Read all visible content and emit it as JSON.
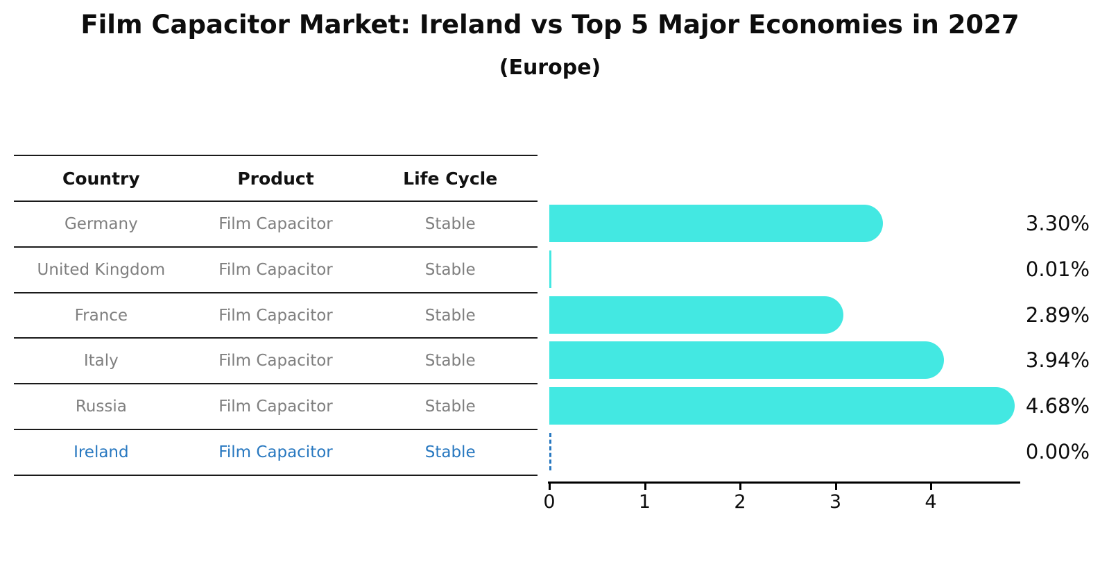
{
  "title": "Film Capacitor Market: Ireland vs Top 5 Major Economies in 2027",
  "subtitle": "(Europe)",
  "table": {
    "columns": [
      "Country",
      "Product",
      "Life Cycle"
    ],
    "rows": [
      {
        "country": "Germany",
        "product": "Film Capacitor",
        "life_cycle": "Stable",
        "highlight": false
      },
      {
        "country": "United Kingdom",
        "product": "Film Capacitor",
        "life_cycle": "Stable",
        "highlight": false
      },
      {
        "country": "France",
        "product": "Film Capacitor",
        "life_cycle": "Stable",
        "highlight": false
      },
      {
        "country": "Italy",
        "product": "Film Capacitor",
        "life_cycle": "Stable",
        "highlight": false
      },
      {
        "country": "Russia",
        "product": "Film Capacitor",
        "life_cycle": "Stable",
        "highlight": false
      },
      {
        "country": "Ireland",
        "product": "Film Capacitor",
        "life_cycle": "Stable",
        "highlight": true
      }
    ]
  },
  "chart_data": {
    "type": "bar",
    "orientation": "horizontal",
    "title": "Film Capacitor Market: Ireland vs Top 5 Major Economies in 2027",
    "subtitle": "(Europe)",
    "categories": [
      "Germany",
      "United Kingdom",
      "France",
      "Italy",
      "Russia",
      "Ireland"
    ],
    "values": [
      3.3,
      0.01,
      2.89,
      3.94,
      4.68,
      0.0
    ],
    "value_labels": [
      "3.30%",
      "0.01%",
      "2.89%",
      "3.94%",
      "4.68%",
      "0.00%"
    ],
    "xlabel": "",
    "ylabel": "",
    "xlim": [
      0,
      4.94
    ],
    "xticks": [
      "0",
      "1",
      "2",
      "3",
      "4"
    ],
    "grid": false,
    "legend": false,
    "bar_color": "#43e8e2",
    "highlight_color": "#2878c0"
  },
  "colors": {
    "bar": "#43e8e2",
    "highlight_text": "#2878c0",
    "row_text": "#7f7f7f",
    "header_text": "#111111",
    "axis": "#000000",
    "background": "#ffffff"
  }
}
